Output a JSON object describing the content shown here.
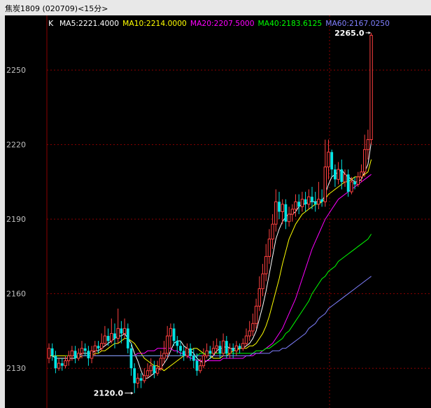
{
  "window": {
    "title": "焦炭1809 (020709)<15分>"
  },
  "legend": {
    "k": "K",
    "items": [
      {
        "label": "MA5:2221.4000",
        "color": "#ffffff"
      },
      {
        "label": "MA10:2214.0000",
        "color": "#ffff00"
      },
      {
        "label": "MA20:2207.5000",
        "color": "#ff00ff"
      },
      {
        "label": "MA40:2183.6125",
        "color": "#00ff00"
      },
      {
        "label": "MA60:2167.0250",
        "color": "#8080ff"
      }
    ]
  },
  "colors": {
    "up": "#ff4040",
    "down": "#00e5e5",
    "grid": "#8b0000",
    "axis_text": "#c0c0c0"
  },
  "chart_data": {
    "type": "candlestick",
    "y_ticks": [
      2130,
      2160,
      2190,
      2220,
      2250
    ],
    "ylim": [
      2114,
      2272
    ],
    "annotations": [
      {
        "text": "2265.0",
        "value": 2265.0
      },
      {
        "text": "2120.0",
        "value": 2120.0
      }
    ],
    "candles": [
      [
        2134,
        2138,
        2132,
        2140
      ],
      [
        2138,
        2135,
        2133,
        2140
      ],
      [
        2135,
        2130,
        2128,
        2137
      ],
      [
        2130,
        2132,
        2129,
        2134
      ],
      [
        2132,
        2131,
        2129,
        2134
      ],
      [
        2131,
        2133,
        2130,
        2135
      ],
      [
        2133,
        2135,
        2131,
        2137
      ],
      [
        2135,
        2137,
        2133,
        2139
      ],
      [
        2137,
        2134,
        2132,
        2139
      ],
      [
        2134,
        2136,
        2133,
        2138
      ],
      [
        2136,
        2138,
        2134,
        2141
      ],
      [
        2138,
        2137,
        2135,
        2140
      ],
      [
        2137,
        2134,
        2131,
        2139
      ],
      [
        2134,
        2137,
        2132,
        2139
      ],
      [
        2137,
        2139,
        2135,
        2141
      ],
      [
        2139,
        2138,
        2136,
        2141
      ],
      [
        2138,
        2140,
        2137,
        2144
      ],
      [
        2140,
        2143,
        2139,
        2147
      ],
      [
        2143,
        2141,
        2139,
        2146
      ],
      [
        2141,
        2144,
        2140,
        2150
      ],
      [
        2144,
        2142,
        2138,
        2148
      ],
      [
        2142,
        2146,
        2140,
        2154
      ],
      [
        2146,
        2144,
        2140,
        2149
      ],
      [
        2144,
        2146,
        2142,
        2150
      ],
      [
        2146,
        2138,
        2136,
        2148
      ],
      [
        2138,
        2130,
        2127,
        2140
      ],
      [
        2130,
        2124,
        2120,
        2132
      ],
      [
        2124,
        2126,
        2122,
        2128
      ],
      [
        2126,
        2125,
        2122,
        2128
      ],
      [
        2125,
        2127,
        2124,
        2130
      ],
      [
        2127,
        2129,
        2126,
        2132
      ],
      [
        2129,
        2131,
        2127,
        2134
      ],
      [
        2131,
        2128,
        2126,
        2133
      ],
      [
        2128,
        2130,
        2127,
        2133
      ],
      [
        2130,
        2134,
        2129,
        2137
      ],
      [
        2134,
        2136,
        2132,
        2141
      ],
      [
        2136,
        2143,
        2134,
        2147
      ],
      [
        2143,
        2146,
        2138,
        2148
      ],
      [
        2146,
        2141,
        2139,
        2148
      ],
      [
        2141,
        2139,
        2136,
        2143
      ],
      [
        2139,
        2137,
        2135,
        2141
      ],
      [
        2137,
        2135,
        2133,
        2139
      ],
      [
        2135,
        2138,
        2134,
        2140
      ],
      [
        2138,
        2135,
        2133,
        2140
      ],
      [
        2135,
        2133,
        2130,
        2138
      ],
      [
        2133,
        2129,
        2127,
        2136
      ],
      [
        2129,
        2131,
        2128,
        2134
      ],
      [
        2131,
        2135,
        2130,
        2138
      ],
      [
        2135,
        2137,
        2134,
        2140
      ],
      [
        2137,
        2136,
        2134,
        2139
      ],
      [
        2136,
        2138,
        2135,
        2141
      ],
      [
        2138,
        2139,
        2136,
        2142
      ],
      [
        2139,
        2136,
        2134,
        2141
      ],
      [
        2136,
        2141,
        2135,
        2144
      ],
      [
        2141,
        2136,
        2134,
        2143
      ],
      [
        2136,
        2138,
        2134,
        2140
      ],
      [
        2138,
        2137,
        2134,
        2140
      ],
      [
        2137,
        2139,
        2135,
        2141
      ],
      [
        2139,
        2138,
        2136,
        2140
      ],
      [
        2138,
        2140,
        2137,
        2142
      ],
      [
        2140,
        2143,
        2139,
        2146
      ],
      [
        2143,
        2145,
        2141,
        2149
      ],
      [
        2145,
        2148,
        2143,
        2152
      ],
      [
        2148,
        2155,
        2146,
        2158
      ],
      [
        2155,
        2162,
        2153,
        2167
      ],
      [
        2162,
        2168,
        2159,
        2172
      ],
      [
        2168,
        2175,
        2165,
        2180
      ],
      [
        2175,
        2182,
        2172,
        2186
      ],
      [
        2182,
        2188,
        2178,
        2192
      ],
      [
        2188,
        2197,
        2185,
        2202
      ],
      [
        2197,
        2193,
        2190,
        2201
      ],
      [
        2193,
        2196,
        2188,
        2198
      ],
      [
        2196,
        2189,
        2186,
        2198
      ],
      [
        2189,
        2192,
        2187,
        2195
      ],
      [
        2192,
        2194,
        2189,
        2196
      ],
      [
        2194,
        2197,
        2191,
        2200
      ],
      [
        2197,
        2195,
        2192,
        2200
      ],
      [
        2195,
        2198,
        2193,
        2201
      ],
      [
        2198,
        2196,
        2193,
        2201
      ],
      [
        2196,
        2199,
        2194,
        2202
      ],
      [
        2199,
        2197,
        2194,
        2203
      ],
      [
        2197,
        2196,
        2193,
        2201
      ],
      [
        2196,
        2198,
        2194,
        2205
      ],
      [
        2198,
        2197,
        2195,
        2202
      ],
      [
        2197,
        2211,
        2195,
        2222
      ],
      [
        2211,
        2217,
        2206,
        2222
      ],
      [
        2217,
        2210,
        2207,
        2218
      ],
      [
        2210,
        2206,
        2203,
        2212
      ],
      [
        2206,
        2210,
        2204,
        2213
      ],
      [
        2210,
        2205,
        2202,
        2214
      ],
      [
        2205,
        2208,
        2203,
        2210
      ],
      [
        2208,
        2201,
        2199,
        2210
      ],
      [
        2201,
        2205,
        2200,
        2207
      ],
      [
        2205,
        2204,
        2202,
        2207
      ],
      [
        2204,
        2207,
        2203,
        2209
      ],
      [
        2207,
        2209,
        2205,
        2212
      ],
      [
        2209,
        2218,
        2207,
        2224
      ],
      [
        2218,
        2222,
        2214,
        2226
      ],
      [
        2222,
        2264,
        2220,
        2265
      ]
    ],
    "ma5": [
      2135,
      2135,
      2134,
      2134,
      2134,
      2134,
      2134,
      2134,
      2134,
      2135,
      2136,
      2136,
      2136,
      2136,
      2137,
      2137,
      2138,
      2139,
      2140,
      2141,
      2142,
      2143,
      2143,
      2144,
      2142,
      2140,
      2136,
      2133,
      2129,
      2126,
      2126,
      2127,
      2128,
      2129,
      2130,
      2132,
      2134,
      2137,
      2140,
      2141,
      2141,
      2139,
      2138,
      2137,
      2136,
      2134,
      2133,
      2132,
      2133,
      2134,
      2135,
      2137,
      2138,
      2138,
      2139,
      2138,
      2138,
      2138,
      2138,
      2138,
      2139,
      2140,
      2142,
      2145,
      2150,
      2155,
      2161,
      2168,
      2175,
      2182,
      2186,
      2189,
      2191,
      2192,
      2192,
      2193,
      2195,
      2196,
      2196,
      2197,
      2197,
      2197,
      2197,
      2197,
      2200,
      2204,
      2207,
      2208,
      2209,
      2210,
      2208,
      2207,
      2206,
      2205,
      2205,
      2206,
      2209,
      2212,
      2221
    ],
    "ma10": [
      2135,
      2135,
      2135,
      2135,
      2135,
      2135,
      2135,
      2135,
      2135,
      2134,
      2135,
      2135,
      2135,
      2135,
      2136,
      2136,
      2137,
      2137,
      2138,
      2139,
      2140,
      2140,
      2141,
      2142,
      2142,
      2141,
      2140,
      2138,
      2136,
      2134,
      2133,
      2132,
      2131,
      2131,
      2130,
      2129,
      2130,
      2131,
      2132,
      2133,
      2134,
      2135,
      2136,
      2137,
      2138,
      2138,
      2137,
      2136,
      2135,
      2135,
      2134,
      2134,
      2134,
      2135,
      2135,
      2136,
      2137,
      2137,
      2138,
      2138,
      2138,
      2139,
      2139,
      2140,
      2142,
      2144,
      2147,
      2151,
      2156,
      2161,
      2166,
      2172,
      2177,
      2182,
      2185,
      2188,
      2190,
      2192,
      2193,
      2194,
      2195,
      2196,
      2196,
      2197,
      2198,
      2200,
      2201,
      2202,
      2203,
      2204,
      2205,
      2205,
      2206,
      2207,
      2207,
      2207,
      2208,
      2209,
      2214
    ],
    "ma20": [
      2135,
      2135,
      2135,
      2135,
      2135,
      2135,
      2135,
      2135,
      2135,
      2135,
      2135,
      2135,
      2135,
      2135,
      2135,
      2135,
      2136,
      2136,
      2136,
      2137,
      2137,
      2137,
      2138,
      2138,
      2138,
      2138,
      2138,
      2137,
      2137,
      2136,
      2136,
      2135,
      2134,
      2134,
      2133,
      2133,
      2133,
      2133,
      2133,
      2133,
      2133,
      2133,
      2134,
      2134,
      2134,
      2134,
      2134,
      2134,
      2134,
      2135,
      2135,
      2135,
      2136,
      2136,
      2137,
      2138,
      2139,
      2140,
      2142,
      2144,
      2146,
      2149,
      2152,
      2155,
      2158,
      2162,
      2166,
      2170,
      2174,
      2178,
      2181,
      2184,
      2187,
      2190,
      2192,
      2194,
      2196,
      2198,
      2199,
      2200,
      2201,
      2202,
      2203,
      2204,
      2205,
      2206,
      2207,
      2208
    ],
    "ma40": [
      2135,
      2135,
      2135,
      2135,
      2135,
      2135,
      2135,
      2135,
      2135,
      2135,
      2135,
      2135,
      2135,
      2135,
      2135,
      2135,
      2135,
      2135,
      2135,
      2135,
      2135,
      2135,
      2135,
      2135,
      2135,
      2135,
      2135,
      2135,
      2135,
      2135,
      2135,
      2135,
      2135,
      2135,
      2135,
      2135,
      2135,
      2135,
      2135,
      2135,
      2135,
      2136,
      2136,
      2136,
      2136,
      2136,
      2136,
      2136,
      2136,
      2136,
      2136,
      2136,
      2136,
      2136,
      2136,
      2136,
      2136,
      2136,
      2137,
      2137,
      2137,
      2138,
      2138,
      2139,
      2140,
      2141,
      2142,
      2144,
      2145,
      2147,
      2149,
      2151,
      2153,
      2155,
      2157,
      2160,
      2162,
      2164,
      2166,
      2167,
      2169,
      2170,
      2171,
      2173,
      2174,
      2175,
      2176,
      2177,
      2178,
      2179,
      2180,
      2181,
      2182,
      2184
    ],
    "ma60": [
      2135,
      2135,
      2135,
      2135,
      2135,
      2135,
      2135,
      2135,
      2135,
      2135,
      2135,
      2135,
      2135,
      2135,
      2135,
      2135,
      2135,
      2135,
      2135,
      2135,
      2135,
      2135,
      2135,
      2135,
      2135,
      2135,
      2135,
      2135,
      2135,
      2135,
      2135,
      2135,
      2135,
      2135,
      2135,
      2135,
      2135,
      2135,
      2135,
      2135,
      2135,
      2135,
      2135,
      2135,
      2135,
      2135,
      2135,
      2135,
      2135,
      2135,
      2135,
      2135,
      2135,
      2135,
      2135,
      2136,
      2136,
      2136,
      2136,
      2136,
      2136,
      2137,
      2137,
      2137,
      2138,
      2138,
      2139,
      2140,
      2141,
      2142,
      2143,
      2144,
      2146,
      2147,
      2148,
      2150,
      2151,
      2152,
      2154,
      2155,
      2156,
      2157,
      2158,
      2159,
      2160,
      2161,
      2162,
      2163,
      2164,
      2165,
      2166,
      2167
    ]
  }
}
